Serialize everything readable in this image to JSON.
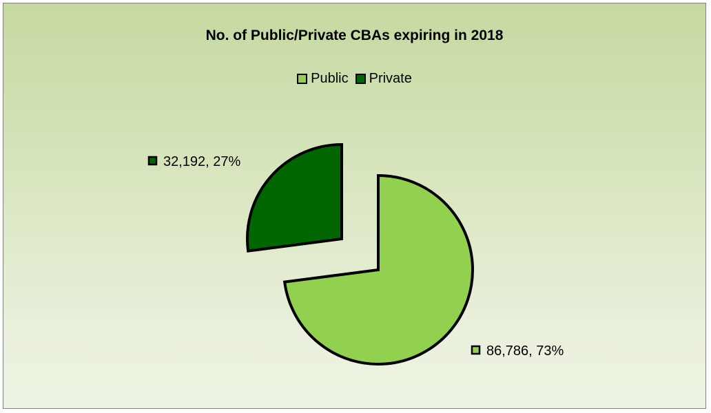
{
  "chart_data": {
    "type": "pie",
    "title": "No. of Public/Private CBAs expiring in 2018",
    "legend_position": "top",
    "series": [
      {
        "name": "Public",
        "value": 86786,
        "percent": 73,
        "label": "86,786, 73%",
        "color": "#92d050"
      },
      {
        "name": "Private",
        "value": 32192,
        "percent": 27,
        "label": "32,192, 27%",
        "color": "#006600"
      }
    ],
    "exploded": true
  }
}
